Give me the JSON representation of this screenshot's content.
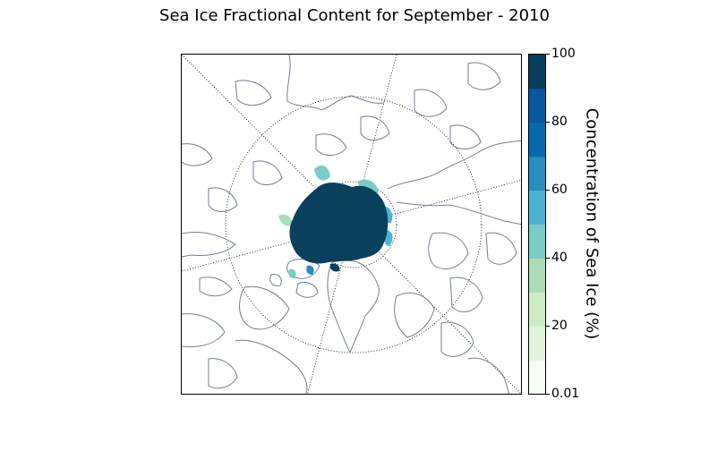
{
  "title": "Sea Ice Fractional Content for September - 2010",
  "colorbar": {
    "label": "Concentration of Sea Ice (%)",
    "ticks": [
      "100",
      "80",
      "60",
      "40",
      "20",
      "0.01"
    ],
    "colors": [
      "#f7fcf0",
      "#e0f3db",
      "#ccebc5",
      "#a8ddb5",
      "#7bccc4",
      "#4eb3d3",
      "#2b8cbe",
      "#0868ac",
      "#08589e",
      "#083d5c"
    ]
  },
  "map": {
    "projection": "north-polar-stereographic",
    "coastline_color": "#708090",
    "ice_color": "#08405e"
  }
}
